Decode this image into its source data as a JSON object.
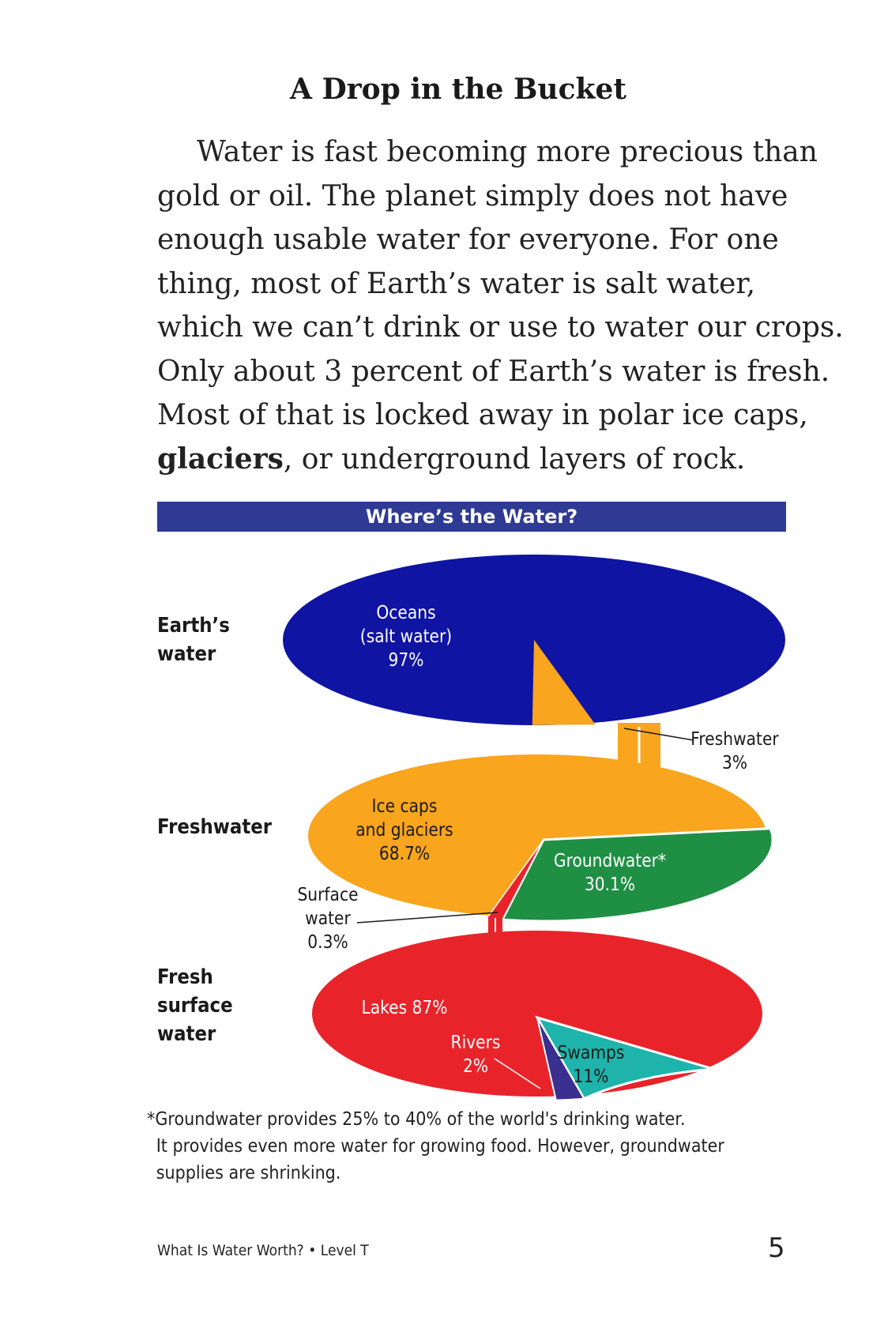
{
  "heading": "A Drop in the Bucket",
  "paragraph": {
    "lines": [
      "Water is fast becoming more precious than",
      "gold or oil. The planet simply does not have",
      "enough usable water for everyone. For one",
      "thing, most of Earth’s water is salt water,",
      "which we can’t drink or use to water our crops.",
      "Only about 3 percent of Earth’s water is fresh.",
      "Most of that is locked away in polar ice caps,"
    ],
    "last_line_bold": "glaciers",
    "last_line_rest": ", or underground layers of rock."
  },
  "chart_data": {
    "type": "pie",
    "title": "Where’s the Water?",
    "pies": [
      {
        "row_label": [
          "Earth’s",
          "water"
        ],
        "slices": [
          {
            "name": "Oceans (salt water)",
            "label_lines": [
              "Oceans",
              "(salt water)",
              "97%"
            ],
            "value": 97,
            "color": "#0f14a3"
          },
          {
            "name": "Freshwater",
            "label_lines": [
              "Freshwater",
              "3%"
            ],
            "value": 3,
            "color": "#f9a51d"
          }
        ]
      },
      {
        "row_label": [
          "Freshwater"
        ],
        "slices": [
          {
            "name": "Ice caps and glaciers",
            "label_lines": [
              "Ice caps",
              "and glaciers",
              "68.7%"
            ],
            "value": 68.7,
            "color": "#f9a51d"
          },
          {
            "name": "Groundwater*",
            "label_lines": [
              "Groundwater*",
              "30.1%"
            ],
            "value": 30.1,
            "color": "#1f8f44"
          },
          {
            "name": "Surface water",
            "label_lines": [
              "Surface",
              "water",
              "0.3%"
            ],
            "value": 0.3,
            "color": "#e8242a"
          }
        ]
      },
      {
        "row_label": [
          "Fresh",
          "surface",
          "water"
        ],
        "slices": [
          {
            "name": "Lakes",
            "label_lines": [
              "Lakes 87%"
            ],
            "value": 87,
            "color": "#e8242a"
          },
          {
            "name": "Rivers",
            "label_lines": [
              "Rivers",
              "2%"
            ],
            "value": 2,
            "color": "#3b2f8f"
          },
          {
            "name": "Swamps",
            "label_lines": [
              "Swamps",
              "11%"
            ],
            "value": 11,
            "color": "#1eb3ab"
          }
        ]
      }
    ]
  },
  "footnote": {
    "lines": [
      "*Groundwater provides 25% to 40% of the world's drinking water.",
      "It provides even more water for growing food. However, groundwater",
      "supplies are shrinking."
    ]
  },
  "footer": {
    "book_title": "What Is Water Worth? • Level T",
    "page_number": "5"
  }
}
